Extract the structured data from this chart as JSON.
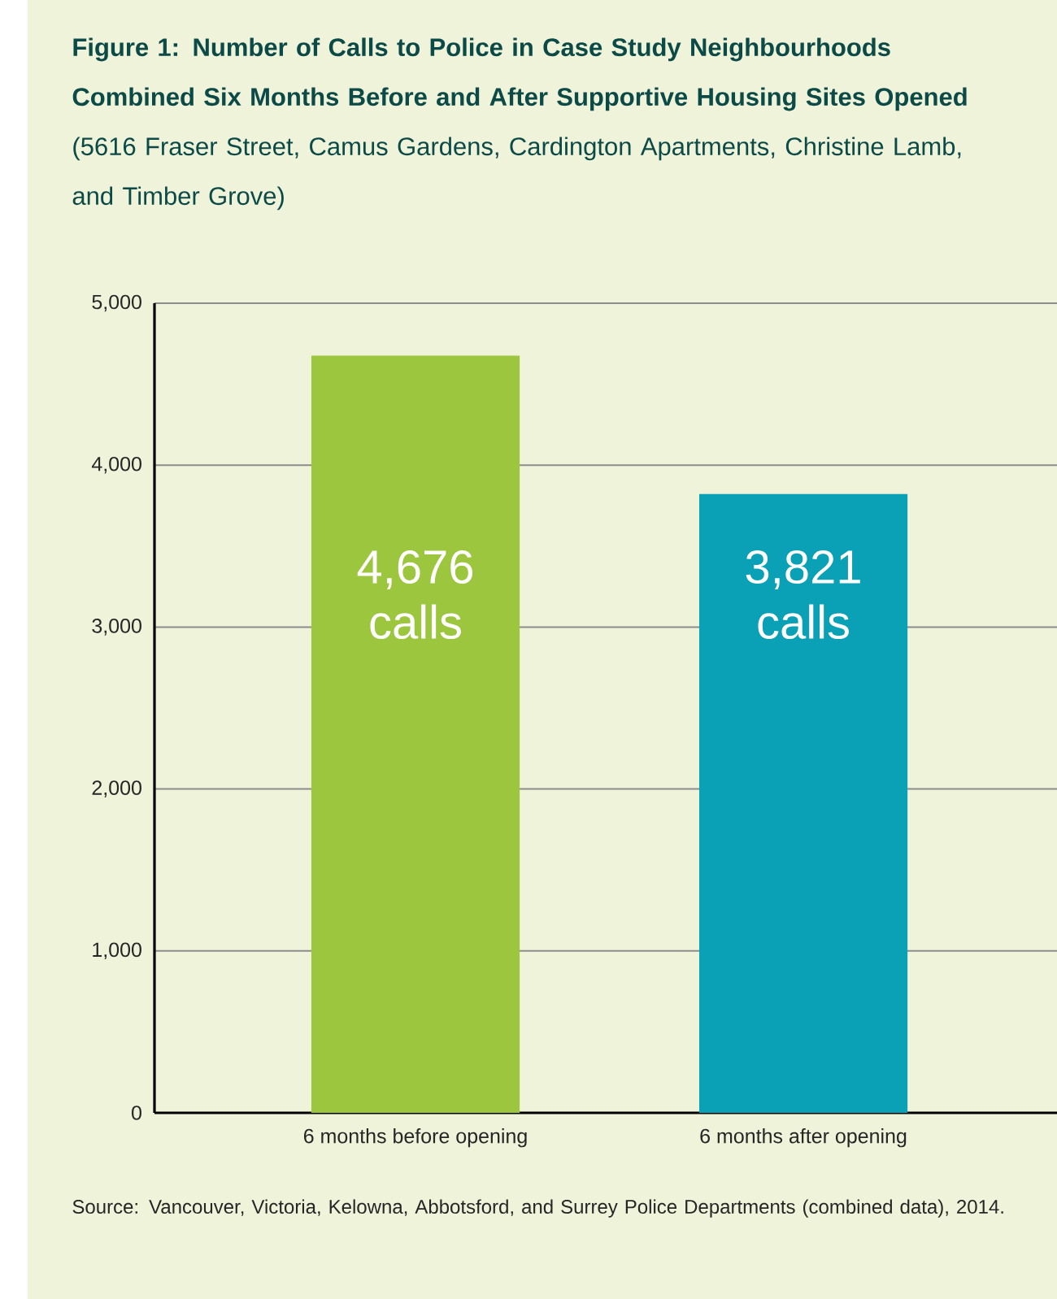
{
  "chart_data": {
    "type": "bar",
    "title": "**Figure 1: Number of Calls to Police in Case Study Neighbourhoods Combined Six Months Before and After Supportive Housing Sites Opened** (5616 Fraser Street, Camus Gardens, Cardington Apartments, Christine Lamb, and Timber Grove)",
    "categories": [
      "6 months before opening",
      "6 months after opening"
    ],
    "values": [
      4676,
      3821
    ],
    "colors": [
      "#9dc63f",
      "#0aa0b5"
    ],
    "value_labels": [
      "4,676 calls",
      "3,821 calls"
    ],
    "ylim": [
      0,
      5000
    ],
    "yticks": [
      0,
      {
        "value": 1000,
        "label": "1,000"
      },
      {
        "value": 2000,
        "label": "2,000"
      },
      {
        "value": 3000,
        "label": "3,000"
      },
      {
        "value": 4000,
        "label": "4,000"
      },
      {
        "value": 5000,
        "label": "5,000"
      }
    ],
    "grid": "y",
    "annotations": [
      "Source: Vancouver, Victoria, Kelowna, Abbotsford, and Surrey Police Departments (combined data), 2014."
    ]
  }
}
